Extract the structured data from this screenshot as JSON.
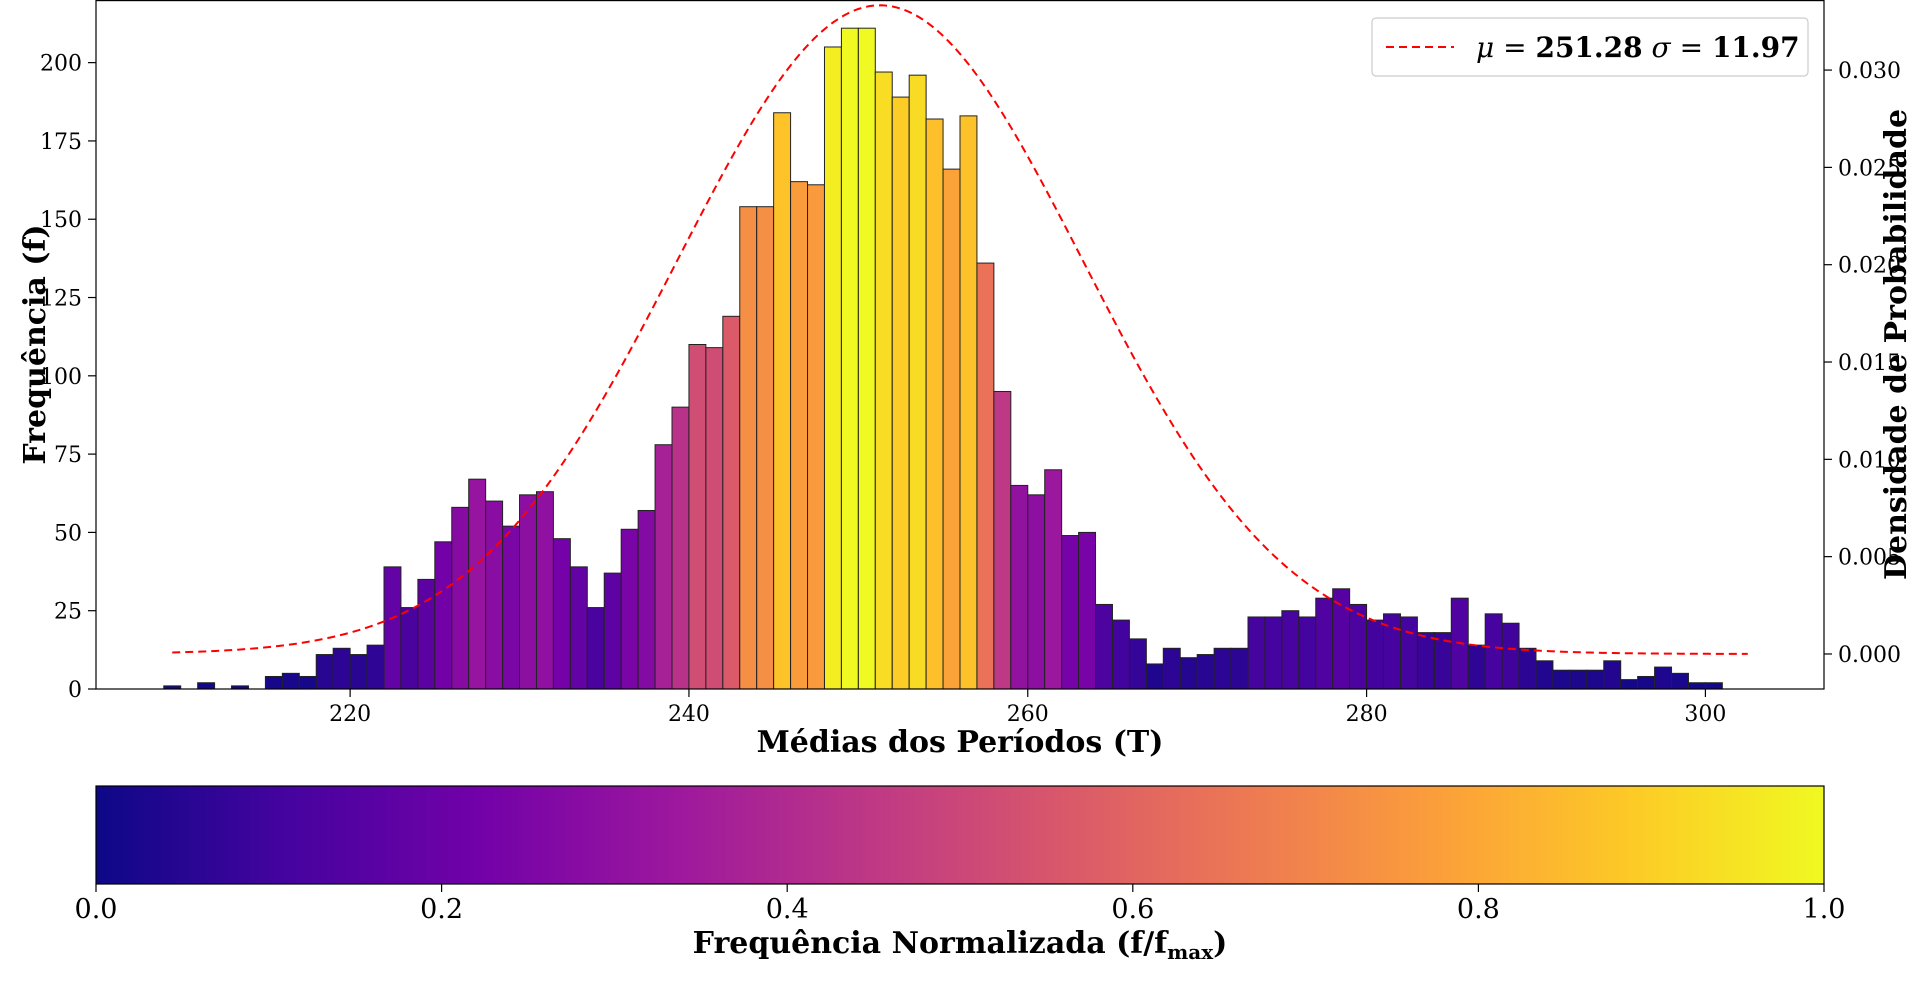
{
  "chart_data": {
    "type": "bar",
    "xlabel": "Médias dos Períodos (T)",
    "ylabel": "Frequência (f)",
    "y2label": "Densidade de Probabilidade",
    "xlim": [
      205,
      307
    ],
    "ylim": [
      0,
      220
    ],
    "y2lim": [
      -0.0018,
      0.0336
    ],
    "xticks": [
      "220",
      "240",
      "260",
      "280",
      "300"
    ],
    "xtick_values": [
      220,
      240,
      260,
      280,
      300
    ],
    "yticks": [
      "0",
      "25",
      "50",
      "75",
      "100",
      "125",
      "150",
      "175",
      "200"
    ],
    "ytick_values": [
      0,
      25,
      50,
      75,
      100,
      125,
      150,
      175,
      200
    ],
    "y2ticks": [
      "0.000",
      "0.005",
      "0.010",
      "0.015",
      "0.020",
      "0.025",
      "0.030"
    ],
    "y2tick_values": [
      0,
      0.005,
      0.01,
      0.015,
      0.02,
      0.025,
      0.03
    ],
    "bin_start": 209.0,
    "bin_width": 1.0,
    "values": [
      1,
      0,
      2,
      0,
      1,
      0,
      4,
      5,
      4,
      11,
      13,
      11,
      14,
      39,
      26,
      35,
      47,
      58,
      67,
      60,
      52,
      62,
      63,
      48,
      39,
      26,
      37,
      51,
      57,
      78,
      90,
      110,
      109,
      119,
      154,
      154,
      184,
      162,
      161,
      205,
      211,
      211,
      197,
      189,
      196,
      182,
      166,
      183,
      136,
      95,
      65,
      62,
      70,
      49,
      50,
      27,
      22,
      16,
      8,
      13,
      10,
      11,
      13,
      13,
      23,
      23,
      25,
      23,
      29,
      32,
      27,
      22,
      24,
      23,
      18,
      18,
      29,
      14,
      24,
      21,
      13,
      9,
      6,
      6,
      6,
      9,
      3,
      4,
      7,
      5,
      2,
      2
    ],
    "grid": false,
    "legend_placement": "top-right",
    "series": [
      {
        "name": "μ = 251.28  σ = 11.97",
        "kind": "normal-pdf",
        "mu": 251.28,
        "sigma": 11.97,
        "color": "#ff0000",
        "x_range": [
          209.5,
          302.5
        ]
      }
    ],
    "colorbar": {
      "label": "Frequência Normalizada (f/f",
      "label_sub": "max",
      "label_end": ")",
      "range": [
        0,
        1
      ],
      "ticks": [
        "0.0",
        "0.2",
        "0.4",
        "0.6",
        "0.8",
        "1.0"
      ],
      "tick_values": [
        0,
        0.2,
        0.4,
        0.6,
        0.8,
        1.0
      ],
      "colormap": [
        "#0d0887",
        "#46039f",
        "#7201a8",
        "#9c179e",
        "#bd3786",
        "#d8576b",
        "#ed7953",
        "#fb9f3a",
        "#fdca26",
        "#f0f921"
      ]
    },
    "legend": {
      "mu_symbol": "μ",
      "sigma_symbol": "σ",
      "mu_value": "251.28",
      "sigma_value": "11.97",
      "equals": " = "
    }
  }
}
